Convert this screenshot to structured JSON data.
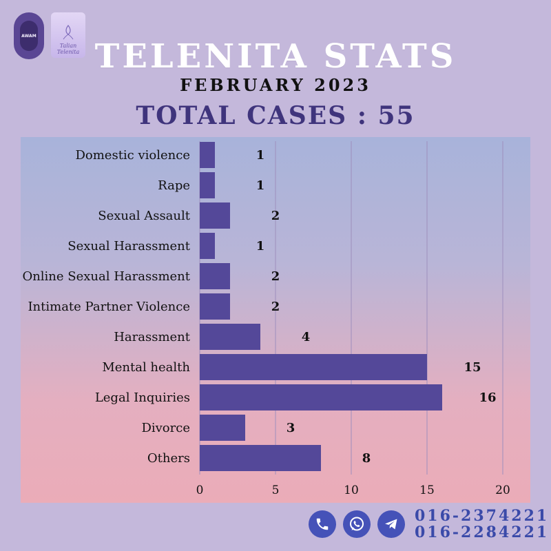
{
  "header": {
    "title": "TELENITA STATS",
    "subtitle": "FEBRUARY 2023",
    "total_cases": "TOTAL CASES : 55"
  },
  "logos": [
    {
      "name": "awam-logo",
      "text": "AWAM"
    },
    {
      "name": "telenita-logo",
      "text": "Talian Telenita"
    }
  ],
  "chart_data": {
    "type": "bar",
    "orientation": "horizontal",
    "categories": [
      "Domestic violence",
      "Rape",
      "Sexual Assault",
      "Sexual Harassment",
      "Online Sexual Harassment",
      "Intimate Partner Violence",
      "Harassment",
      "Mental health",
      "Legal Inquiries",
      "Divorce",
      "Others"
    ],
    "values": [
      1,
      1,
      2,
      1,
      2,
      2,
      4,
      15,
      16,
      3,
      8
    ],
    "title": "",
    "xlabel": "",
    "ylabel": "",
    "xlim": [
      0,
      20
    ],
    "xticks": [
      0,
      5,
      10,
      15,
      20
    ],
    "grid": "vertical",
    "colors": {
      "bar": "#544899",
      "grid": "#9e8fbd",
      "text": "#111111"
    }
  },
  "contacts": {
    "icons": [
      "phone-icon",
      "whatsapp-icon",
      "telegram-icon"
    ],
    "phones": [
      "016-2374221",
      "016-2284221"
    ]
  }
}
